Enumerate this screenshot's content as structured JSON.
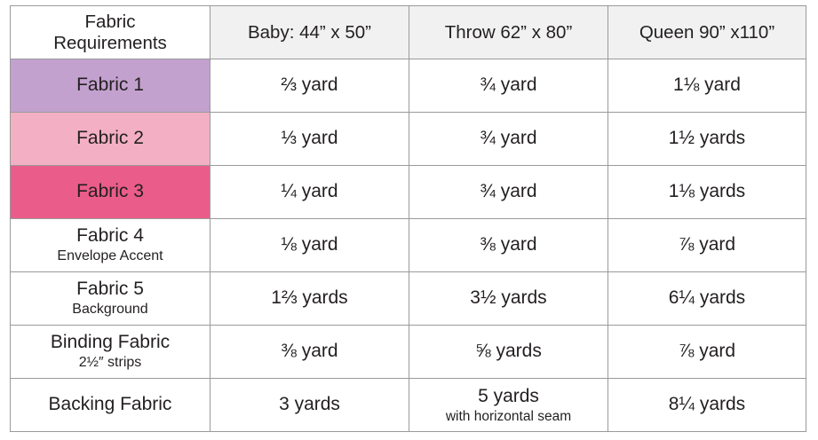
{
  "header": {
    "corner_line1": "Fabric",
    "corner_line2": "Requirements",
    "sizes": [
      "Baby: 44” x 50”",
      "Throw 62” x 80”",
      "Queen 90” x110”"
    ]
  },
  "rows": [
    {
      "name": "Fabric 1",
      "sub": "",
      "color": "#c3a1cf",
      "values": [
        "⅔ yard",
        "¾ yard",
        "1⅛ yard"
      ]
    },
    {
      "name": "Fabric 2",
      "sub": "",
      "color": "#f3b0c4",
      "values": [
        "⅓ yard",
        "¾ yard",
        "1½ yards"
      ]
    },
    {
      "name": "Fabric 3",
      "sub": "",
      "color": "#ea5d8a",
      "values": [
        "¼ yard",
        "¾ yard",
        "1⅛ yards"
      ]
    },
    {
      "name": "Fabric 4",
      "sub": "Envelope Accent",
      "color": "#ffffff",
      "values": [
        "⅛ yard",
        "⅜ yard",
        "⅞ yard"
      ]
    },
    {
      "name": "Fabric 5",
      "sub": "Background",
      "color": "#ffffff",
      "values": [
        "1⅔ yards",
        "3½ yards",
        "6¼ yards"
      ]
    },
    {
      "name": "Binding Fabric",
      "sub": "2½″ strips",
      "color": "#ffffff",
      "values": [
        "⅜ yard",
        "⅝ yards",
        "⅞ yard"
      ]
    },
    {
      "name": "Backing Fabric",
      "sub": "",
      "color": "#ffffff",
      "values": [
        "3 yards",
        "5 yards",
        "8¼ yards"
      ],
      "value_notes": [
        "",
        "with horizontal seam",
        ""
      ]
    }
  ]
}
